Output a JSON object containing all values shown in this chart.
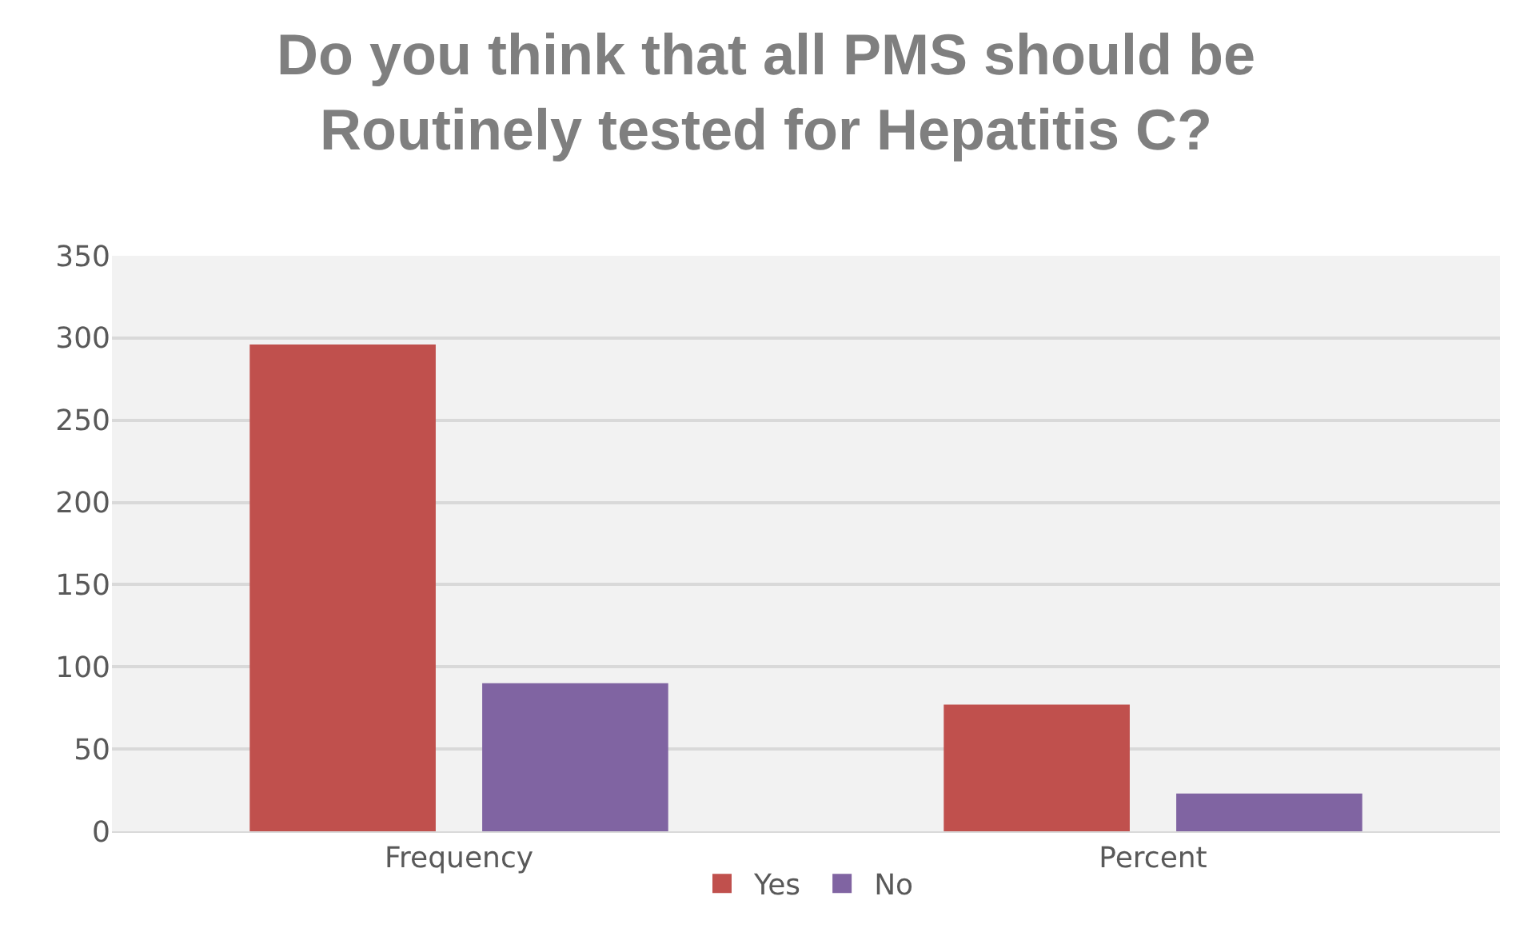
{
  "chart_data": {
    "type": "bar",
    "title": "Do you think that all PMS should be Routinely tested for Hepatitis C?",
    "categories": [
      "Frequency",
      "Percent"
    ],
    "series": [
      {
        "name": "Yes",
        "color": "#c0504d",
        "values": [
          296,
          77
        ]
      },
      {
        "name": "No",
        "color": "#8064a2",
        "values": [
          90,
          23
        ]
      }
    ],
    "ylim": [
      0,
      350
    ],
    "yticks": [
      0,
      50,
      100,
      150,
      200,
      250,
      300,
      350
    ],
    "grid": "y",
    "legend": "bottom"
  }
}
